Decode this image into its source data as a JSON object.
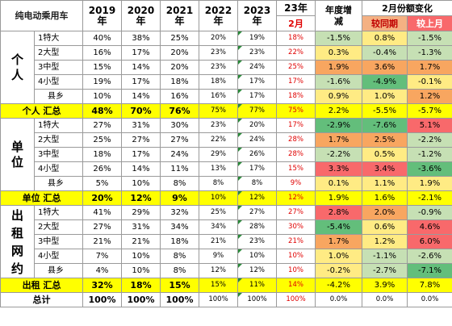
{
  "header": {
    "title": "纯电动乘用车",
    "years": [
      {
        "y": "2019",
        "s": "年"
      },
      {
        "y": "2020",
        "s": "年"
      },
      {
        "y": "2021",
        "s": "年"
      },
      {
        "y": "2022",
        "s": "年"
      },
      {
        "y": "2023",
        "s": "年"
      }
    ],
    "y23": "23年",
    "m2": "2月",
    "annual_growth": "年度增减",
    "feb_change": "2月份额变化",
    "yoy": "较同期",
    "mom": "较上月"
  },
  "groups": [
    {
      "label": "个人",
      "rows": [
        {
          "name": "1特大",
          "v": [
            "40%",
            "38%",
            "25%",
            "20%",
            "19%",
            "18%",
            "-1.5%",
            "0.8%",
            "-1.5%"
          ]
        },
        {
          "name": "2大型",
          "v": [
            "16%",
            "17%",
            "20%",
            "23%",
            "23%",
            "22%",
            "0.3%",
            "-0.4%",
            "-1.3%"
          ]
        },
        {
          "name": "3中型",
          "v": [
            "15%",
            "14%",
            "20%",
            "23%",
            "24%",
            "25%",
            "1.9%",
            "3.6%",
            "1.7%"
          ]
        },
        {
          "name": "4小型",
          "v": [
            "19%",
            "17%",
            "18%",
            "18%",
            "17%",
            "17%",
            "-1.6%",
            "-4.9%",
            "-0.1%"
          ]
        },
        {
          "name": "县乡",
          "v": [
            "10%",
            "14%",
            "16%",
            "16%",
            "17%",
            "18%",
            "0.9%",
            "1.0%",
            "1.2%"
          ]
        }
      ],
      "summary": {
        "label": "个人  汇总",
        "v": [
          "48%",
          "70%",
          "76%",
          "75%",
          "77%",
          "75%",
          "2.2%",
          "-5.5%",
          "-5.7%"
        ]
      }
    },
    {
      "label": "单位",
      "rows": [
        {
          "name": "1特大",
          "v": [
            "27%",
            "31%",
            "30%",
            "23%",
            "20%",
            "17%",
            "-2.9%",
            "-7.6%",
            "5.1%"
          ]
        },
        {
          "name": "2大型",
          "v": [
            "25%",
            "27%",
            "27%",
            "22%",
            "24%",
            "28%",
            "1.7%",
            "2.5%",
            "-2.2%"
          ]
        },
        {
          "name": "3中型",
          "v": [
            "18%",
            "17%",
            "24%",
            "29%",
            "26%",
            "28%",
            "-2.2%",
            "0.5%",
            "-1.2%"
          ]
        },
        {
          "name": "4小型",
          "v": [
            "26%",
            "14%",
            "11%",
            "13%",
            "17%",
            "15%",
            "3.3%",
            "3.4%",
            "-3.6%"
          ]
        },
        {
          "name": "县乡",
          "v": [
            "5%",
            "10%",
            "8%",
            "8%",
            "8%",
            "9%",
            "0.1%",
            "1.1%",
            "1.9%"
          ]
        }
      ],
      "summary": {
        "label": "单位  汇总",
        "v": [
          "20%",
          "12%",
          "9%",
          "10%",
          "12%",
          "12%",
          "1.9%",
          "1.6%",
          "-2.1%"
        ]
      }
    },
    {
      "label": "出租网约",
      "rows": [
        {
          "name": "1特大",
          "v": [
            "41%",
            "29%",
            "32%",
            "25%",
            "27%",
            "27%",
            "2.8%",
            "2.0%",
            "-0.9%"
          ]
        },
        {
          "name": "2大型",
          "v": [
            "27%",
            "31%",
            "34%",
            "34%",
            "28%",
            "30%",
            "-5.4%",
            "0.6%",
            "4.6%"
          ]
        },
        {
          "name": "3中型",
          "v": [
            "21%",
            "21%",
            "18%",
            "21%",
            "23%",
            "21%",
            "1.7%",
            "1.2%",
            "6.0%"
          ]
        },
        {
          "name": "4小型",
          "v": [
            "7%",
            "10%",
            "8%",
            "9%",
            "10%",
            "10%",
            "1.0%",
            "-1.1%",
            "-2.6%"
          ]
        },
        {
          "name": "县乡",
          "v": [
            "4%",
            "10%",
            "8%",
            "12%",
            "12%",
            "10%",
            "-0.2%",
            "-2.7%",
            "-7.1%"
          ]
        }
      ],
      "summary": {
        "label": "出租  汇总",
        "v": [
          "32%",
          "18%",
          "15%",
          "15%",
          "11%",
          "14%",
          "-4.2%",
          "3.9%",
          "7.8%"
        ]
      }
    }
  ],
  "total": {
    "label": "总计",
    "v": [
      "100%",
      "100%",
      "100%",
      "100%",
      "100%",
      "100%",
      "0.0%",
      "0.0%",
      "0.0%"
    ]
  },
  "colors": {
    "summary_bg": "#ffff00",
    "red_text": "#e00000",
    "green": "#63be7b",
    "light_green": "#c6e0b4",
    "yellow": "#ffeb84",
    "orange": "#f8a660",
    "red": "#f8696b"
  }
}
